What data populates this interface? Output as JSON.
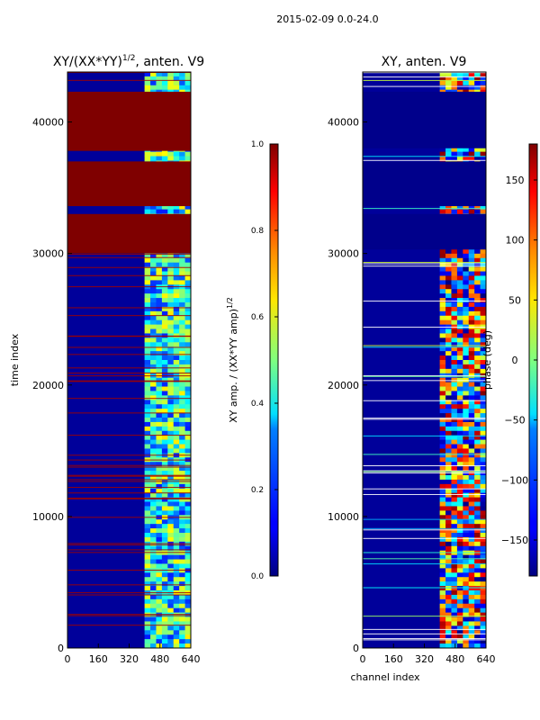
{
  "suptitle": "2015-02-09 0.0-24.0",
  "chart_data": [
    {
      "type": "heatmap",
      "title_main": "XY/(XX*YY)",
      "title_sup": "1/2",
      "title_rest": ", anten. V9",
      "xlabel": "",
      "ylabel": "time index",
      "x_ticks": [
        "0",
        "160",
        "320",
        "480",
        "640"
      ],
      "y_ticks": [
        "0",
        "10000",
        "20000",
        "30000",
        "40000"
      ],
      "xlim": [
        0,
        640
      ],
      "ylim": [
        0,
        43800
      ],
      "colorbar": {
        "label_main": "XY amp. / (XX*YY amp)",
        "label_sup": "1/2",
        "ticks": [
          "0.0",
          "0.2",
          "0.4",
          "0.6",
          "0.8",
          "1.0"
        ],
        "range": [
          0,
          1
        ]
      },
      "saturated_bands": [
        [
          30000,
          33000
        ],
        [
          33600,
          37000
        ],
        [
          37800,
          42300
        ]
      ],
      "active_channel_range": [
        400,
        640
      ]
    },
    {
      "type": "heatmap",
      "title": "XY, anten. V9",
      "xlabel": "channel index",
      "ylabel": "",
      "x_ticks": [
        "0",
        "160",
        "320",
        "480",
        "640"
      ],
      "y_ticks": [
        "0",
        "10000",
        "20000",
        "30000",
        "40000"
      ],
      "xlim": [
        0,
        640
      ],
      "ylim": [
        0,
        43800
      ],
      "colorbar": {
        "label": "phase (deg)",
        "ticks": [
          "−150",
          "−100",
          "−50",
          "0",
          "50",
          "100",
          "150"
        ],
        "tick_values": [
          -150,
          -100,
          -50,
          0,
          50,
          100,
          150
        ],
        "range": [
          -180,
          180
        ]
      },
      "active_channel_range": [
        400,
        640
      ]
    }
  ]
}
